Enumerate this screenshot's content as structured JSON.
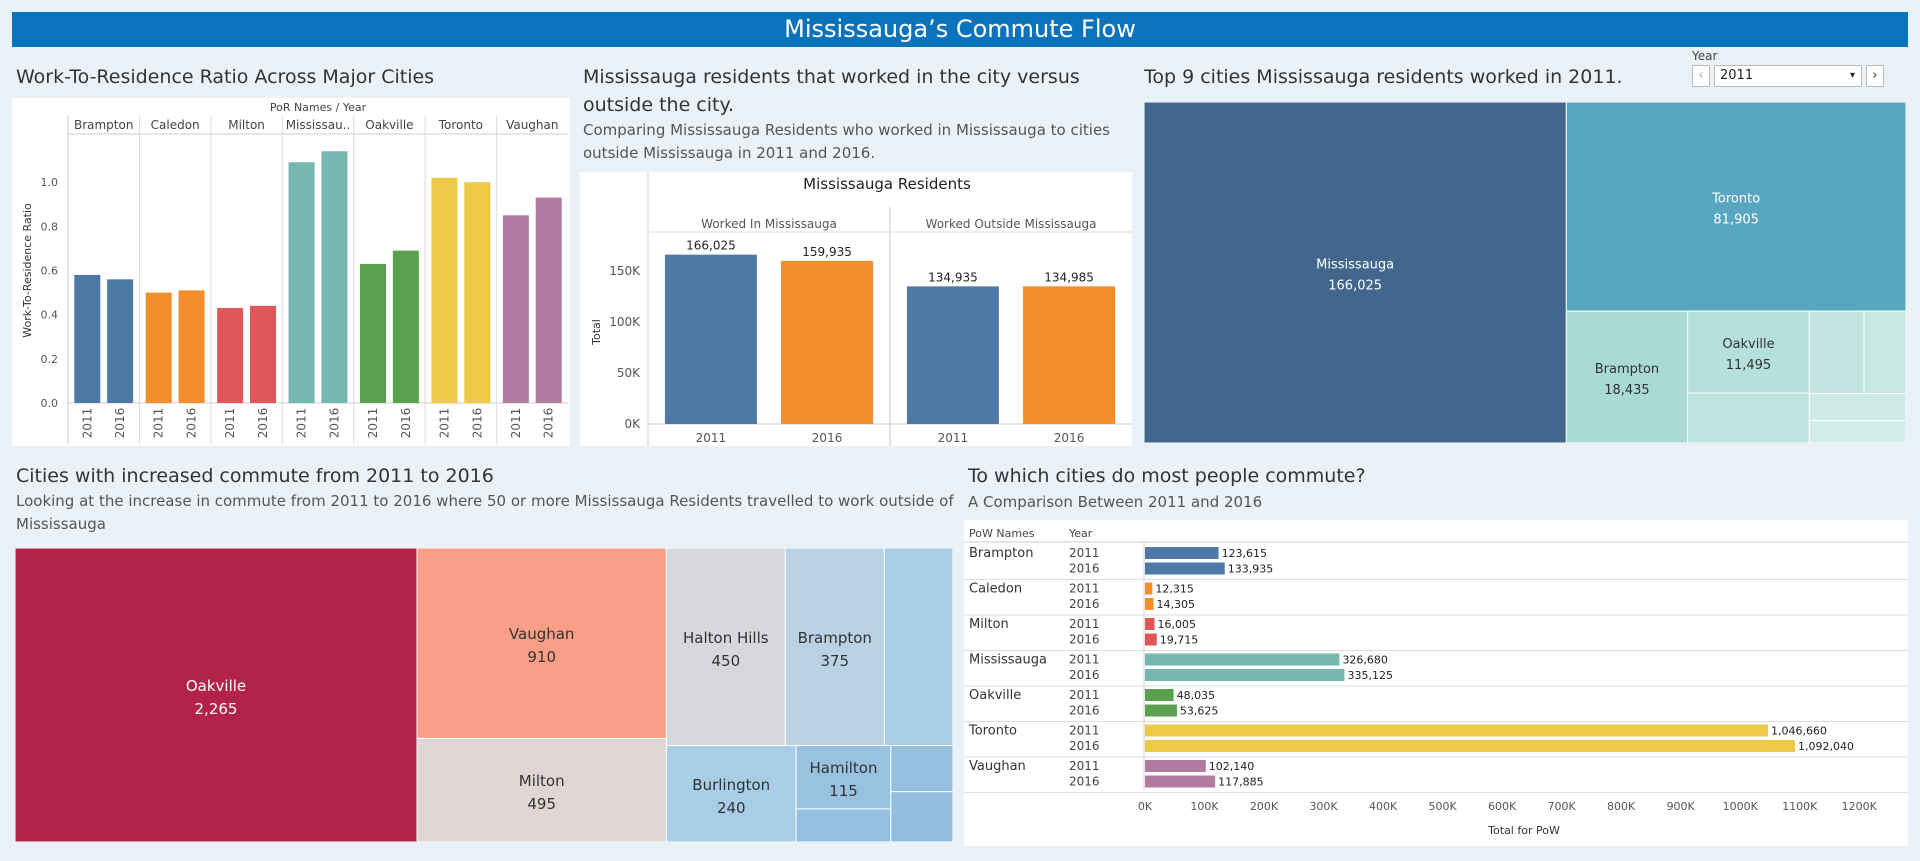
{
  "banner": {
    "title": "Mississauga’s Commute Flow"
  },
  "ratio_panel": {
    "title": "Work-To-Residence Ratio Across Major Cities"
  },
  "residents_panel": {
    "title_line1": "Mississauga residents that worked in the city versus",
    "title_line2": "outside the city.",
    "subtitle_line1": "Comparing Mississauga Residents who worked in Mississauga to cities",
    "subtitle_line2": "outside Mississauga in 2011 and 2016."
  },
  "top9_panel": {
    "title": "Top 9 cities Mississauga residents worked in 2011."
  },
  "year_filter": {
    "label": "Year",
    "selected": "2011",
    "prev_icon": "‹",
    "next_icon": "›",
    "caret": "▾"
  },
  "increase_panel": {
    "title": "Cities with increased commute from 2011 to 2016",
    "subtitle_line1": "Looking at the increase in commute from 2011 to 2016 where 50 or more Mississauga Residents travelled to work outside of",
    "subtitle_line2": "Mississauga"
  },
  "pow_panel": {
    "title": "To which cities do most people commute?",
    "subtitle": "A Comparison Between 2011 and 2016"
  },
  "chart_data": [
    {
      "type": "bar",
      "name": "work-to-residence-ratio",
      "header": "PoR Names / Year",
      "ylabel": "Work-To-Residence Ratio",
      "ylim": [
        0,
        1.2
      ],
      "yticks": [
        0.0,
        0.2,
        0.4,
        0.6,
        0.8,
        1.0
      ],
      "ytick_labels": [
        "0.0",
        "0.2",
        "0.4",
        "0.6",
        "0.8",
        "1.0"
      ],
      "years": [
        "2011",
        "2016"
      ],
      "cities": [
        {
          "name": "Brampton",
          "label": "Brampton",
          "color": "#4e79a7",
          "values": [
            0.58,
            0.56
          ]
        },
        {
          "name": "Caledon",
          "label": "Caledon",
          "color": "#f28e2b",
          "values": [
            0.5,
            0.51
          ]
        },
        {
          "name": "Milton",
          "label": "Milton",
          "color": "#e15759",
          "values": [
            0.43,
            0.44
          ]
        },
        {
          "name": "Mississauga",
          "label": "Mississau..",
          "color": "#76b7b2",
          "values": [
            1.09,
            1.14
          ]
        },
        {
          "name": "Oakville",
          "label": "Oakville",
          "color": "#59a14f",
          "values": [
            0.63,
            0.69
          ]
        },
        {
          "name": "Toronto",
          "label": "Toronto",
          "color": "#edc948",
          "values": [
            1.02,
            1.0
          ]
        },
        {
          "name": "Vaughan",
          "label": "Vaughan",
          "color": "#b07aa1",
          "values": [
            0.85,
            0.93
          ]
        }
      ]
    },
    {
      "type": "bar",
      "name": "mississauga-residents",
      "title": "Mississauga Residents",
      "ylabel": "Total",
      "ylim": [
        0,
        200000
      ],
      "yticks": [
        0,
        50000,
        100000,
        150000
      ],
      "ytick_labels": [
        "0K",
        "50K",
        "100K",
        "150K"
      ],
      "groups": [
        {
          "label": "Worked In Mississauga",
          "bars": [
            {
              "year": "2011",
              "value": 166025,
              "label": "166,025",
              "color": "#4e79a7"
            },
            {
              "year": "2016",
              "value": 159935,
              "label": "159,935",
              "color": "#f28e2b"
            }
          ]
        },
        {
          "label": "Worked Outside Mississauga",
          "bars": [
            {
              "year": "2011",
              "value": 134935,
              "label": "134,935",
              "color": "#4e79a7"
            },
            {
              "year": "2016",
              "value": 134985,
              "label": "134,985",
              "color": "#f28e2b"
            }
          ]
        }
      ]
    },
    {
      "type": "treemap",
      "name": "top9-2011",
      "items": [
        {
          "name": "Mississauga",
          "value": 166025,
          "label": "166,025",
          "color": "#41678c",
          "text_color": "#ffffff"
        },
        {
          "name": "Toronto",
          "value": 81905,
          "label": "81,905",
          "color": "#58a6c0",
          "text_color": "#ffffff"
        },
        {
          "name": "Brampton",
          "value": 18435,
          "label": "18,435",
          "color": "#a9dad6",
          "text_color": "#333333"
        },
        {
          "name": "Oakville",
          "value": 11495,
          "label": "11,495",
          "color": "#b6e0dc",
          "text_color": "#333333"
        },
        {
          "name": "",
          "value": 7000,
          "label": "",
          "color": "#bde3df"
        },
        {
          "name": "",
          "value": 5200,
          "label": "",
          "color": "#c4e6e2"
        },
        {
          "name": "",
          "value": 4000,
          "label": "",
          "color": "#c8e8e4"
        },
        {
          "name": "",
          "value": 3000,
          "label": "",
          "color": "#cdeae7"
        },
        {
          "name": "",
          "value": 2500,
          "label": "",
          "color": "#d1ece9"
        }
      ]
    },
    {
      "type": "treemap",
      "name": "increased-commute",
      "items": [
        {
          "name": "Oakville",
          "value": 2265,
          "label": "2,265",
          "color": "#b22249",
          "text_color": "#ffffff"
        },
        {
          "name": "Vaughan",
          "value": 910,
          "label": "910",
          "color": "#fa9e87",
          "text_color": "#333333"
        },
        {
          "name": "Milton",
          "value": 495,
          "label": "495",
          "color": "#e0d6d5",
          "text_color": "#333333"
        },
        {
          "name": "Halton Hills",
          "value": 450,
          "label": "450",
          "color": "#d6d8db",
          "text_color": "#333333"
        },
        {
          "name": "Brampton",
          "value": 375,
          "label": "375",
          "color": "#b9d3e5",
          "text_color": "#333333"
        },
        {
          "name": "Burlington",
          "value": 240,
          "label": "240",
          "color": "#a8cde6",
          "text_color": "#333333"
        },
        {
          "name": "Hamilton",
          "value": 115,
          "label": "115",
          "color": "#99c1e0",
          "text_color": "#333333"
        },
        {
          "name": "",
          "value": 260,
          "label": "",
          "color": "#a9cde6"
        },
        {
          "name": "",
          "value": 60,
          "label": "",
          "color": "#96bfdf"
        },
        {
          "name": "",
          "value": 55,
          "label": "",
          "color": "#96bfdf"
        },
        {
          "name": "",
          "value": 60,
          "label": "",
          "color": "#94bede"
        }
      ]
    },
    {
      "type": "bar",
      "orientation": "horizontal",
      "name": "pow-comparison",
      "col_headers": [
        "PoW Names",
        "Year"
      ],
      "xlabel": "Total for PoW",
      "xlim": [
        0,
        1250000
      ],
      "xticks": [
        0,
        100000,
        200000,
        300000,
        400000,
        500000,
        600000,
        700000,
        800000,
        900000,
        1000000,
        1100000,
        1200000
      ],
      "xtick_labels": [
        "0K",
        "100K",
        "200K",
        "300K",
        "400K",
        "500K",
        "600K",
        "700K",
        "800K",
        "900K",
        "1000K",
        "1100K",
        "1200K"
      ],
      "cities": [
        {
          "name": "Brampton",
          "color": "#4e79a7",
          "rows": [
            {
              "year": "2011",
              "value": 123615,
              "label": "123,615"
            },
            {
              "year": "2016",
              "value": 133935,
              "label": "133,935"
            }
          ]
        },
        {
          "name": "Caledon",
          "color": "#f28e2b",
          "rows": [
            {
              "year": "2011",
              "value": 12315,
              "label": "12,315"
            },
            {
              "year": "2016",
              "value": 14305,
              "label": "14,305"
            }
          ]
        },
        {
          "name": "Milton",
          "color": "#e15759",
          "rows": [
            {
              "year": "2011",
              "value": 16005,
              "label": "16,005"
            },
            {
              "year": "2016",
              "value": 19715,
              "label": "19,715"
            }
          ]
        },
        {
          "name": "Mississauga",
          "color": "#76b7b2",
          "rows": [
            {
              "year": "2011",
              "value": 326680,
              "label": "326,680"
            },
            {
              "year": "2016",
              "value": 335125,
              "label": "335,125"
            }
          ]
        },
        {
          "name": "Oakville",
          "color": "#59a14f",
          "rows": [
            {
              "year": "2011",
              "value": 48035,
              "label": "48,035"
            },
            {
              "year": "2016",
              "value": 53625,
              "label": "53,625"
            }
          ]
        },
        {
          "name": "Toronto",
          "color": "#edc948",
          "rows": [
            {
              "year": "2011",
              "value": 1046660,
              "label": "1,046,660"
            },
            {
              "year": "2016",
              "value": 1092040,
              "label": "1,092,040"
            }
          ]
        },
        {
          "name": "Vaughan",
          "color": "#b07aa1",
          "rows": [
            {
              "year": "2011",
              "value": 102140,
              "label": "102,140"
            },
            {
              "year": "2016",
              "value": 117885,
              "label": "117,885"
            }
          ]
        }
      ]
    }
  ]
}
